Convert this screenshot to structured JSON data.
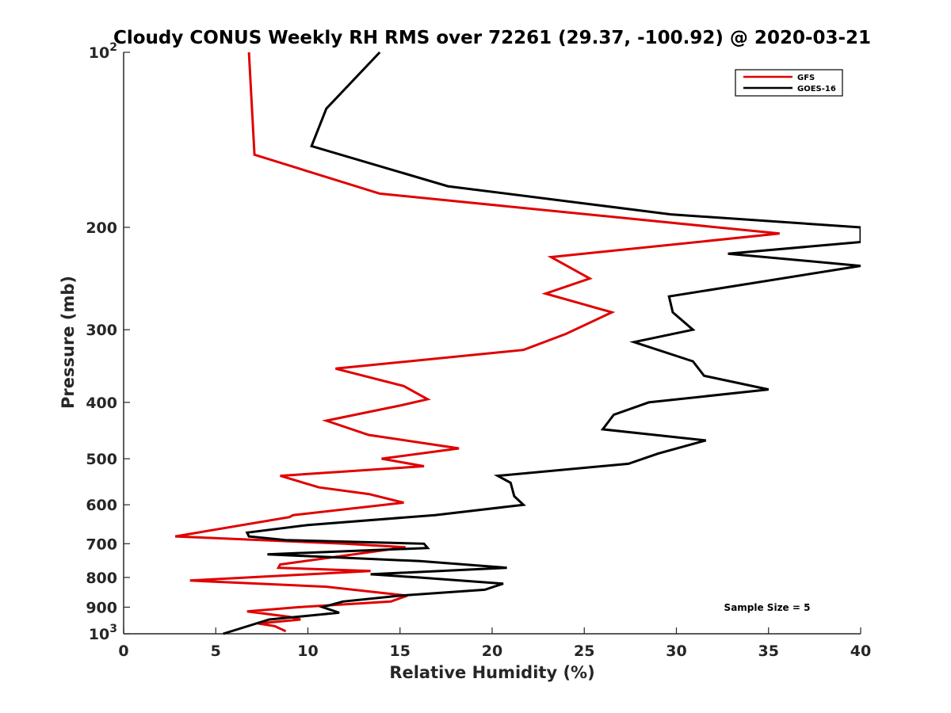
{
  "chart_data": {
    "type": "line",
    "title": "Cloudy CONUS Weekly RH RMS over 72261 (29.37, -100.92) @ 2020-03-21",
    "xlabel": "Relative Humidity (%)",
    "ylabel": "Pressure (mb)",
    "xlim": [
      0,
      40
    ],
    "ylim": [
      100,
      1000
    ],
    "y_scale": "log",
    "y_reversed": true,
    "grid": false,
    "legend_position": "top-right",
    "x_ticks": [
      0,
      5,
      10,
      15,
      20,
      25,
      30,
      35,
      40
    ],
    "y_ticks": [
      100,
      200,
      300,
      400,
      500,
      600,
      700,
      800,
      900,
      1000
    ],
    "y_tick_labels": [
      "10^2",
      "200",
      "300",
      "400",
      "500",
      "600",
      "700",
      "800",
      "900",
      "10^3"
    ],
    "annotation": "Sample Size = 5",
    "series": [
      {
        "name": "GFS",
        "color": "#e00000",
        "points": [
          [
            6.8,
            100
          ],
          [
            7.1,
            150
          ],
          [
            13.9,
            175
          ],
          [
            35.6,
            205
          ],
          [
            23.2,
            225
          ],
          [
            25.3,
            245
          ],
          [
            22.9,
            260
          ],
          [
            26.5,
            280
          ],
          [
            24.0,
            305
          ],
          [
            21.7,
            325
          ],
          [
            11.5,
            350
          ],
          [
            15.2,
            375
          ],
          [
            16.5,
            395
          ],
          [
            15.0,
            405
          ],
          [
            11.0,
            430
          ],
          [
            13.3,
            455
          ],
          [
            18.2,
            480
          ],
          [
            14.0,
            500
          ],
          [
            16.3,
            515
          ],
          [
            8.5,
            535
          ],
          [
            10.6,
            560
          ],
          [
            13.3,
            575
          ],
          [
            15.2,
            595
          ],
          [
            9.2,
            625
          ],
          [
            9.0,
            630
          ],
          [
            2.8,
            680
          ],
          [
            12.0,
            700
          ],
          [
            15.3,
            710
          ],
          [
            8.5,
            760
          ],
          [
            8.4,
            770
          ],
          [
            13.4,
            780
          ],
          [
            3.6,
            810
          ],
          [
            11.0,
            830
          ],
          [
            15.4,
            860
          ],
          [
            14.5,
            880
          ],
          [
            9.5,
            900
          ],
          [
            6.7,
            915
          ],
          [
            9.0,
            935
          ],
          [
            9.6,
            945
          ],
          [
            7.3,
            960
          ],
          [
            8.2,
            970
          ],
          [
            8.8,
            990
          ]
        ]
      },
      {
        "name": "GOES-16",
        "color": "#000000",
        "points": [
          [
            13.9,
            100
          ],
          [
            11.0,
            125
          ],
          [
            10.2,
            145
          ],
          [
            17.6,
            170
          ],
          [
            29.7,
            190
          ],
          [
            40.0,
            200
          ],
          [
            40.0,
            212
          ],
          [
            32.8,
            222
          ],
          [
            40.0,
            233
          ],
          [
            29.6,
            263
          ],
          [
            29.8,
            280
          ],
          [
            30.9,
            300
          ],
          [
            27.7,
            315
          ],
          [
            30.9,
            340
          ],
          [
            31.5,
            360
          ],
          [
            35.0,
            380
          ],
          [
            28.5,
            400
          ],
          [
            26.6,
            420
          ],
          [
            26.0,
            445
          ],
          [
            31.6,
            465
          ],
          [
            29.0,
            490
          ],
          [
            27.4,
            510
          ],
          [
            20.3,
            535
          ],
          [
            21.0,
            550
          ],
          [
            21.2,
            580
          ],
          [
            21.7,
            600
          ],
          [
            16.9,
            625
          ],
          [
            10.0,
            650
          ],
          [
            6.7,
            670
          ],
          [
            6.8,
            680
          ],
          [
            8.8,
            690
          ],
          [
            16.3,
            700
          ],
          [
            16.5,
            712
          ],
          [
            7.8,
            730
          ],
          [
            16.1,
            750
          ],
          [
            20.8,
            770
          ],
          [
            13.4,
            790
          ],
          [
            16.0,
            800
          ],
          [
            20.6,
            820
          ],
          [
            19.6,
            840
          ],
          [
            15.0,
            860
          ],
          [
            11.9,
            880
          ],
          [
            10.8,
            900
          ],
          [
            11.7,
            920
          ],
          [
            7.9,
            945
          ],
          [
            5.4,
            1000
          ]
        ]
      }
    ]
  }
}
